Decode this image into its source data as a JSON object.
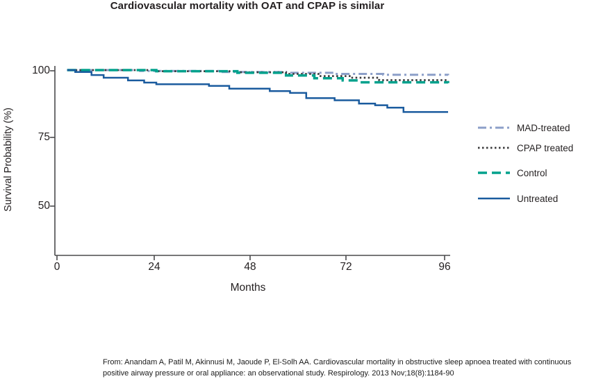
{
  "title": "Cardiovascular mortality with OAT and CPAP is similar",
  "chart_data": {
    "type": "line",
    "subtype": "kaplan-meier-step",
    "title": "Cardiovascular mortality with OAT and CPAP is similar",
    "xlabel": "Months",
    "ylabel": "Survival Probability (%)",
    "xlim": [
      0,
      96
    ],
    "ylim": [
      32,
      102
    ],
    "xticks": [
      "0",
      "24",
      "48",
      "72",
      "96"
    ],
    "yticks": [
      "100",
      "75",
      "50"
    ],
    "grid": false,
    "legend_position": "right",
    "axis_color": "#4a4a4c",
    "series": [
      {
        "name": "MAD-treated",
        "color": "#8c9fc8",
        "style": "dash-dot",
        "points": [
          [
            2,
            100
          ],
          [
            20,
            99.7
          ],
          [
            40,
            99.3
          ],
          [
            56,
            99.0
          ],
          [
            68,
            98.6
          ],
          [
            80,
            98.3
          ],
          [
            96,
            98.1
          ]
        ]
      },
      {
        "name": "CPAP treated",
        "color": "#3b3b3c",
        "style": "dotted",
        "points": [
          [
            2,
            100
          ],
          [
            24,
            99.6
          ],
          [
            44,
            99.2
          ],
          [
            56,
            98.6
          ],
          [
            64,
            97.8
          ],
          [
            72,
            97.2
          ],
          [
            79,
            96.3
          ],
          [
            96,
            95.9
          ]
        ]
      },
      {
        "name": "Control",
        "color": "#00a18c",
        "style": "dashed",
        "points": [
          [
            2,
            100
          ],
          [
            24,
            99.6
          ],
          [
            44,
            99.0
          ],
          [
            56,
            98.0
          ],
          [
            63,
            97.0
          ],
          [
            70,
            96.2
          ],
          [
            74,
            95.5
          ],
          [
            96,
            95.2
          ]
        ]
      },
      {
        "name": "Untreated",
        "color": "#1a5b9e",
        "style": "solid",
        "points": [
          [
            2,
            100
          ],
          [
            4,
            99.3
          ],
          [
            8,
            98.2
          ],
          [
            11,
            97.2
          ],
          [
            17,
            96.2
          ],
          [
            21,
            95.4
          ],
          [
            24,
            94.8
          ],
          [
            37,
            94.2
          ],
          [
            42,
            93.2
          ],
          [
            52,
            92.3
          ],
          [
            57,
            91.6
          ],
          [
            61,
            89.7
          ],
          [
            68,
            88.9
          ],
          [
            74,
            87.7
          ],
          [
            78,
            87.1
          ],
          [
            81,
            86.2
          ],
          [
            85,
            84.6
          ],
          [
            96,
            84.6
          ]
        ]
      }
    ]
  },
  "citation": {
    "lines": [
      "From: Anandam A, Patil M, Akinnusi M, Jaoude P, El-Solh AA. Cardiovascular mortality in obstructive sleep apnoea treated with continuous",
      "positive airway pressure or oral appliance: an observational study. Respirology. 2013 Nov;18(8):1184-90"
    ]
  }
}
